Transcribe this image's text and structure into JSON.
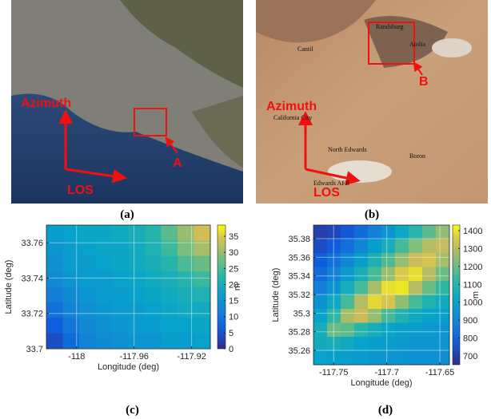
{
  "images": [
    {
      "label": "(a)",
      "azimuth": "Azimuth",
      "los": "LOS",
      "target": "A"
    },
    {
      "label": "(b)",
      "azimuth": "Azimuth",
      "los": "LOS",
      "target": "B",
      "places": [
        "Randsburg",
        "Cantil",
        "Atolia",
        "California City",
        "North Edwards",
        "Boron",
        "Edwards AFB"
      ]
    }
  ],
  "chart_data": [
    {
      "type": "heatmap",
      "panel_label": "(c)",
      "xlabel": "Longitude (deg)",
      "ylabel": "Latitude (deg)",
      "xlim": [
        -118.021,
        -117.907
      ],
      "ylim": [
        33.7,
        33.77
      ],
      "xticks": [
        -118,
        -117.96,
        -117.92
      ],
      "yticks": [
        33.7,
        33.72,
        33.74,
        33.76
      ],
      "grid": true,
      "values": [
        [
          16,
          17,
          18,
          18,
          19,
          20,
          22,
          26,
          30,
          34
        ],
        [
          15,
          16,
          17,
          18,
          18,
          19,
          21,
          24,
          28,
          31
        ],
        [
          14,
          16,
          16,
          17,
          18,
          19,
          20,
          22,
          25,
          27
        ],
        [
          13,
          15,
          16,
          16,
          17,
          18,
          19,
          20,
          22,
          24
        ],
        [
          11,
          13,
          15,
          16,
          16,
          17,
          18,
          19,
          20,
          21
        ],
        [
          9,
          12,
          14,
          15,
          16,
          16,
          17,
          18,
          19,
          19
        ],
        [
          6,
          10,
          13,
          14,
          15,
          16,
          16,
          17,
          17,
          18
        ],
        [
          4,
          8,
          12,
          13,
          14,
          15,
          15,
          16,
          16,
          17
        ]
      ],
      "colorbar": {
        "label": "m",
        "lim": [
          0,
          38.5
        ],
        "ticks": [
          0,
          5,
          10,
          15,
          20,
          25,
          30,
          35
        ]
      }
    },
    {
      "type": "heatmap",
      "panel_label": "(d)",
      "xlabel": "Longitude (deg)",
      "ylabel": "Latitude (deg)",
      "xlim": [
        -117.769,
        -117.641
      ],
      "ylim": [
        35.2446,
        35.3946
      ],
      "xticks": [
        -117.75,
        -117.7,
        -117.65
      ],
      "yticks": [
        35.26,
        35.28,
        35.3,
        35.32,
        35.34,
        35.36,
        35.38
      ],
      "grid": true,
      "values": [
        [
          700,
          720,
          760,
          820,
          880,
          950,
          1020,
          1100,
          1180,
          1250
        ],
        [
          730,
          770,
          830,
          900,
          980,
          1060,
          1150,
          1230,
          1300,
          1320
        ],
        [
          770,
          830,
          900,
          980,
          1070,
          1160,
          1250,
          1330,
          1350,
          1280
        ],
        [
          820,
          890,
          970,
          1060,
          1150,
          1260,
          1360,
          1390,
          1300,
          1200
        ],
        [
          880,
          960,
          1050,
          1150,
          1280,
          1390,
          1400,
          1300,
          1200,
          1120
        ],
        [
          940,
          1030,
          1150,
          1300,
          1380,
          1350,
          1250,
          1150,
          1080,
          1040
        ],
        [
          1000,
          1120,
          1280,
          1330,
          1250,
          1150,
          1080,
          1030,
          1000,
          990
        ],
        [
          1050,
          1200,
          1180,
          1100,
          1050,
          1010,
          990,
          980,
          970,
          960
        ],
        [
          1040,
          1060,
          1030,
          1000,
          990,
          980,
          970,
          960,
          950,
          950
        ],
        [
          1000,
          990,
          980,
          970,
          960,
          950,
          950,
          940,
          940,
          930
        ]
      ],
      "colorbar": {
        "label": "m",
        "lim": [
          651,
          1431
        ],
        "ticks": [
          700,
          800,
          900,
          1000,
          1100,
          1200,
          1300,
          1400
        ]
      }
    }
  ]
}
